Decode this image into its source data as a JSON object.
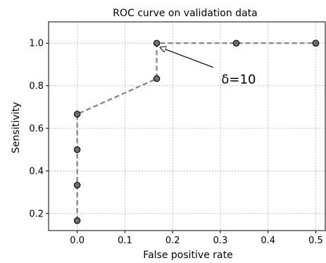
{
  "chart_data": {
    "type": "line",
    "title": "ROC curve on validation data",
    "xlabel": "False positive rate",
    "ylabel": "Sensitivity",
    "xlim": [
      -0.06,
      0.52
    ],
    "ylim": [
      0.12,
      1.1
    ],
    "xticks": [
      0.0,
      0.1,
      0.2,
      0.3,
      0.4,
      0.5
    ],
    "xtick_labels": [
      "0.0",
      "0.1",
      "0.2",
      "0.3",
      "0.4",
      "0.5"
    ],
    "yticks": [
      0.2,
      0.4,
      0.6,
      0.8,
      1.0
    ],
    "ytick_labels": [
      "0.2",
      "0.4",
      "0.6",
      "0.8",
      "1.0"
    ],
    "grid": true,
    "series": [
      {
        "x": [
          0.0,
          0.0,
          0.0,
          0.0,
          0.1667,
          0.1667,
          0.3333,
          0.5,
          0.5
        ],
        "y": [
          0.1667,
          0.3333,
          0.5,
          0.6667,
          0.8333,
          1.0,
          1.0,
          1.0,
          1.0
        ],
        "color": "#808080",
        "marker_color": "#6e6e6e",
        "line_style": "dashed"
      }
    ],
    "annotation": {
      "text": "δ=10",
      "point_x": 0.1667,
      "point_y": 1.0,
      "text_x": 0.3,
      "text_y": 0.83
    }
  }
}
